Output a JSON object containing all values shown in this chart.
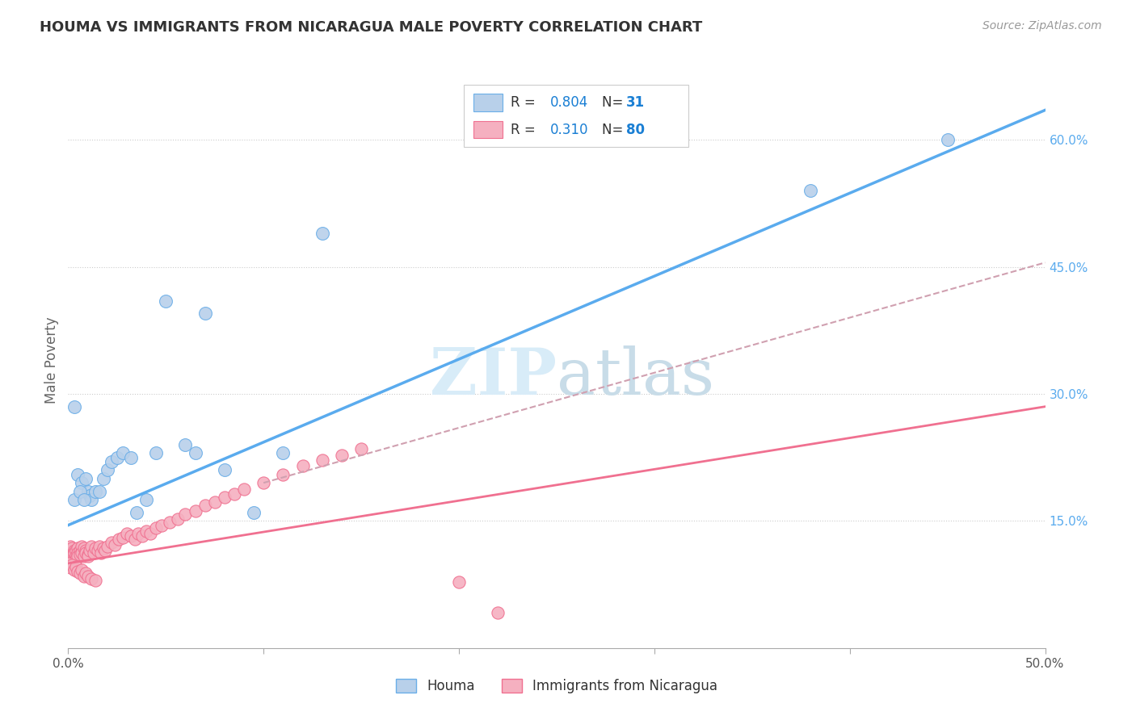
{
  "title": "HOUMA VS IMMIGRANTS FROM NICARAGUA MALE POVERTY CORRELATION CHART",
  "source": "Source: ZipAtlas.com",
  "ylabel": "Male Poverty",
  "x_min": 0.0,
  "x_max": 0.5,
  "y_min": 0.0,
  "y_max": 0.68,
  "x_ticks": [
    0.0,
    0.1,
    0.2,
    0.3,
    0.4,
    0.5
  ],
  "x_tick_labels_edge": [
    "0.0%",
    "",
    "",
    "",
    "",
    "50.0%"
  ],
  "x_tick_minor": [
    0.1,
    0.2,
    0.3,
    0.4
  ],
  "y_tick_right": [
    0.15,
    0.3,
    0.45,
    0.6
  ],
  "y_tick_right_labels": [
    "15.0%",
    "30.0%",
    "45.0%",
    "60.0%"
  ],
  "legend_R1": "0.804",
  "legend_N1": "31",
  "legend_R2": "0.310",
  "legend_N2": "80",
  "color_houma_fill": "#b8d0ea",
  "color_houma_edge": "#6aaee8",
  "color_nicaragua_fill": "#f5b0c0",
  "color_nicaragua_edge": "#f07090",
  "color_line_houma": "#5aabee",
  "color_line_nicaragua": "#f07090",
  "color_dashed": "#d0a0b0",
  "watermark_color": "#d8ecf8",
  "houma_x": [
    0.003,
    0.005,
    0.007,
    0.009,
    0.01,
    0.011,
    0.012,
    0.014,
    0.016,
    0.018,
    0.02,
    0.022,
    0.025,
    0.028,
    0.032,
    0.035,
    0.04,
    0.045,
    0.05,
    0.06,
    0.065,
    0.07,
    0.08,
    0.095,
    0.11,
    0.13,
    0.38,
    0.45,
    0.003,
    0.006,
    0.008
  ],
  "houma_y": [
    0.285,
    0.205,
    0.195,
    0.2,
    0.185,
    0.18,
    0.175,
    0.185,
    0.185,
    0.2,
    0.21,
    0.22,
    0.225,
    0.23,
    0.225,
    0.16,
    0.175,
    0.23,
    0.41,
    0.24,
    0.23,
    0.395,
    0.21,
    0.16,
    0.23,
    0.49,
    0.54,
    0.6,
    0.175,
    0.185,
    0.175
  ],
  "nicaragua_x": [
    0.0,
    0.0,
    0.001,
    0.001,
    0.001,
    0.002,
    0.002,
    0.002,
    0.003,
    0.003,
    0.003,
    0.004,
    0.004,
    0.004,
    0.005,
    0.005,
    0.005,
    0.006,
    0.006,
    0.007,
    0.007,
    0.008,
    0.008,
    0.009,
    0.009,
    0.01,
    0.01,
    0.011,
    0.012,
    0.013,
    0.014,
    0.015,
    0.016,
    0.017,
    0.018,
    0.019,
    0.02,
    0.022,
    0.024,
    0.026,
    0.028,
    0.03,
    0.032,
    0.034,
    0.036,
    0.038,
    0.04,
    0.042,
    0.045,
    0.048,
    0.052,
    0.056,
    0.06,
    0.065,
    0.07,
    0.075,
    0.08,
    0.085,
    0.09,
    0.1,
    0.11,
    0.12,
    0.13,
    0.14,
    0.15,
    0.0,
    0.001,
    0.002,
    0.003,
    0.004,
    0.005,
    0.006,
    0.007,
    0.008,
    0.009,
    0.01,
    0.012,
    0.014,
    0.2,
    0.22
  ],
  "nicaragua_y": [
    0.115,
    0.108,
    0.12,
    0.11,
    0.105,
    0.118,
    0.11,
    0.108,
    0.115,
    0.108,
    0.112,
    0.115,
    0.108,
    0.105,
    0.118,
    0.112,
    0.108,
    0.115,
    0.11,
    0.12,
    0.112,
    0.118,
    0.108,
    0.115,
    0.112,
    0.11,
    0.108,
    0.115,
    0.12,
    0.112,
    0.118,
    0.115,
    0.12,
    0.112,
    0.118,
    0.115,
    0.12,
    0.125,
    0.122,
    0.128,
    0.13,
    0.135,
    0.132,
    0.128,
    0.135,
    0.132,
    0.138,
    0.135,
    0.142,
    0.145,
    0.148,
    0.152,
    0.158,
    0.162,
    0.168,
    0.172,
    0.178,
    0.182,
    0.188,
    0.195,
    0.205,
    0.215,
    0.222,
    0.228,
    0.235,
    0.1,
    0.095,
    0.098,
    0.092,
    0.096,
    0.09,
    0.088,
    0.092,
    0.085,
    0.088,
    0.085,
    0.082,
    0.08,
    0.078,
    0.042
  ],
  "houma_line_x": [
    0.0,
    0.5
  ],
  "houma_line_y": [
    0.145,
    0.635
  ],
  "nicaragua_line_x": [
    0.0,
    0.5
  ],
  "nicaragua_line_y": [
    0.1,
    0.285
  ],
  "dashed_line_x": [
    0.1,
    0.5
  ],
  "dashed_line_y": [
    0.195,
    0.455
  ]
}
